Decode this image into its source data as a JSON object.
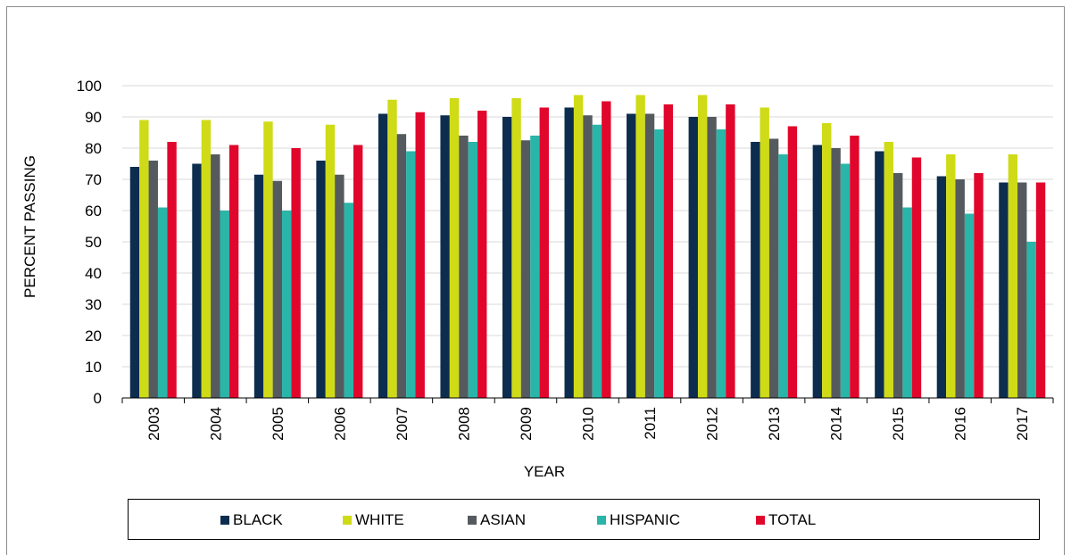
{
  "chart_data": {
    "type": "bar",
    "title": "",
    "xlabel": "YEAR",
    "ylabel": "PERCENT PASSING",
    "ylim": [
      0,
      100
    ],
    "yticks": [
      0,
      10,
      20,
      30,
      40,
      50,
      60,
      70,
      80,
      90,
      100
    ],
    "grid": true,
    "legend_position": "bottom",
    "categories": [
      "2003",
      "2004",
      "2005",
      "2006",
      "2007",
      "2008",
      "2009",
      "2010",
      "2011",
      "2012",
      "2013",
      "2014",
      "2015",
      "2016",
      "2017"
    ],
    "series": [
      {
        "name": "BLACK",
        "color": "#0d2d4f",
        "values": [
          74,
          75,
          71.5,
          76,
          91,
          90.5,
          90,
          93,
          91,
          90,
          82,
          81,
          79,
          71,
          69
        ]
      },
      {
        "name": "WHITE",
        "color": "#cfdb16",
        "values": [
          89,
          89,
          88.5,
          87.5,
          95.5,
          96,
          96,
          97,
          97,
          97,
          93,
          88,
          82,
          78,
          78
        ]
      },
      {
        "name": "ASIAN",
        "color": "#555a5e",
        "values": [
          76,
          78,
          69.5,
          71.5,
          84.5,
          84,
          82.5,
          90.5,
          91,
          90,
          83,
          80,
          72,
          70,
          69
        ]
      },
      {
        "name": "HISPANIC",
        "color": "#2ab5a9",
        "values": [
          61,
          60,
          60,
          62.5,
          79,
          82,
          84,
          87.5,
          86,
          86,
          78,
          75,
          61,
          59,
          50
        ]
      },
      {
        "name": "TOTAL",
        "color": "#e1072c",
        "values": [
          82,
          81,
          80,
          81,
          91.5,
          92,
          93,
          95,
          94,
          94,
          87,
          84,
          77,
          72,
          69
        ]
      }
    ]
  }
}
